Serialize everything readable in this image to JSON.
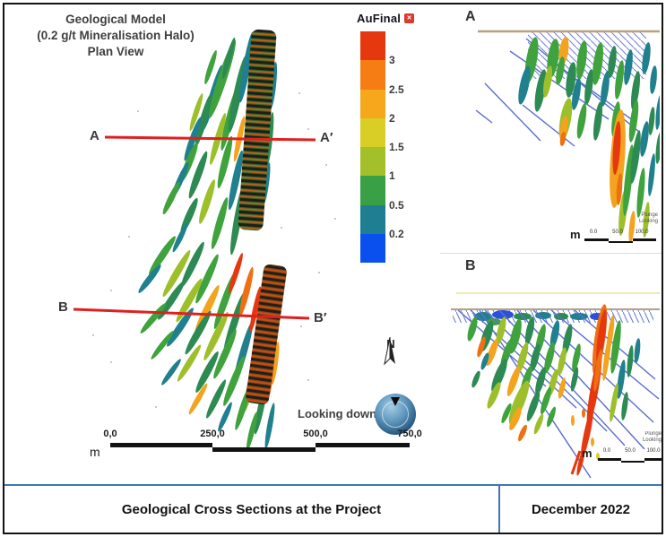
{
  "plan": {
    "title_lines": [
      "Geological Model",
      "(0.2 g/t Mineralisation Halo)",
      "Plan View"
    ],
    "line_a_start": "A",
    "line_a_end": "A′",
    "line_b_start": "B",
    "line_b_end": "B′",
    "north_label": "N",
    "looking_label": "Looking down",
    "scale_unit": "m",
    "scale_ticks": [
      "0,0",
      "250,0",
      "500,0",
      "750,0"
    ]
  },
  "legend": {
    "title": "AuFinal",
    "close_glyph": "✕",
    "ticks": [
      "3",
      "2.5",
      "2",
      "1.5",
      "1",
      "0.5",
      "0.2"
    ],
    "colors": [
      "#e5380e",
      "#f57d13",
      "#f6a71c",
      "#d8ce25",
      "#a3c02a",
      "#3aa045",
      "#1e7f92",
      "#0a50ee"
    ]
  },
  "sections": {
    "a_label": "A",
    "b_label": "B",
    "scale_unit": "m",
    "scale_ticks": [
      "0.0",
      "50.0",
      "100.0"
    ],
    "note_line1": "Plunge",
    "note_line2": "Looking"
  },
  "caption": {
    "title": "Geological Cross Sections at the Project",
    "date": "December 2022"
  },
  "colors": {
    "section_line_red": "#e02020",
    "drill_line_blue": "#5a6ed0",
    "surface_tan": "#b9a07c",
    "surface_yellow": "#e6e696"
  }
}
